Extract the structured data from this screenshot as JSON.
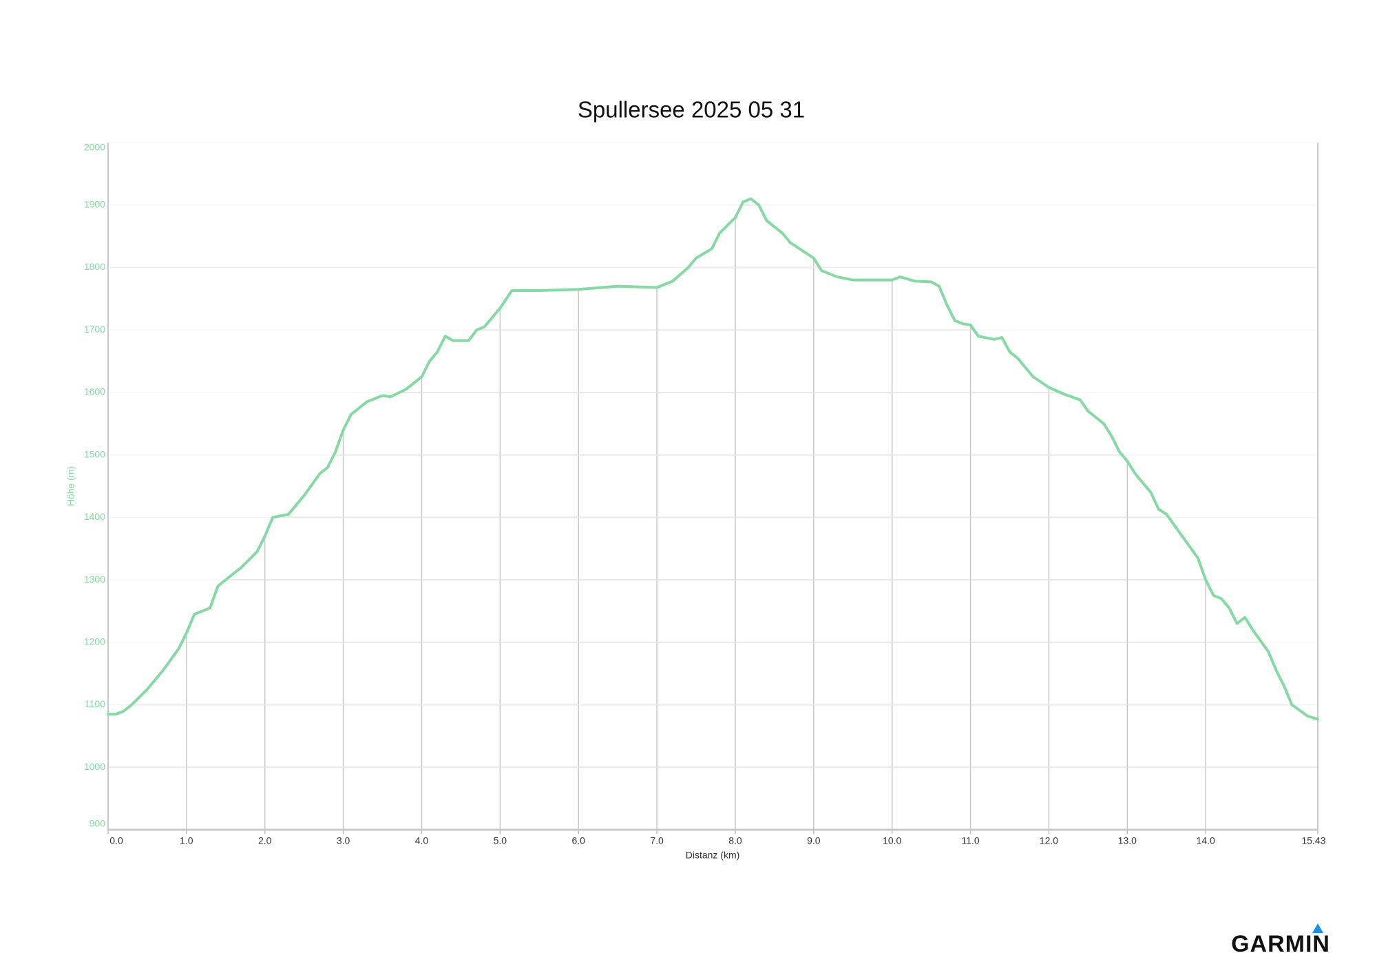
{
  "chart_data": {
    "type": "line",
    "title": "Spullersee 2025 05 31",
    "xlabel": "Distanz (km)",
    "ylabel": "Höhe (m)",
    "logo": "GARMIN",
    "xlim": [
      0,
      15.43
    ],
    "ylim": [
      900,
      2000
    ],
    "xticks": [
      {
        "value": 0,
        "label": "0.0"
      },
      {
        "value": 1,
        "label": "1.0"
      },
      {
        "value": 2,
        "label": "2.0"
      },
      {
        "value": 3,
        "label": "3.0"
      },
      {
        "value": 4,
        "label": "4.0"
      },
      {
        "value": 5,
        "label": "5.0"
      },
      {
        "value": 6,
        "label": "6.0"
      },
      {
        "value": 7,
        "label": "7.0"
      },
      {
        "value": 8,
        "label": "8.0"
      },
      {
        "value": 9,
        "label": "9.0"
      },
      {
        "value": 10,
        "label": "10.0"
      },
      {
        "value": 11,
        "label": "11.0"
      },
      {
        "value": 12,
        "label": "12.0"
      },
      {
        "value": 13,
        "label": "13.0"
      },
      {
        "value": 14,
        "label": "14.0"
      },
      15.43
    ],
    "yticks": [
      900,
      1000,
      1100,
      1200,
      1300,
      1400,
      1500,
      1600,
      1700,
      1800,
      1900,
      2000
    ],
    "grid": true,
    "series": [
      {
        "color": "#86d9a5",
        "x": [
          0,
          0.1,
          0.2,
          0.3,
          0.5,
          0.7,
          0.9,
          1.0,
          1.1,
          1.2,
          1.3,
          1.4,
          1.5,
          1.7,
          1.9,
          2.0,
          2.1,
          2.3,
          2.5,
          2.7,
          2.8,
          2.9,
          3.0,
          3.1,
          3.3,
          3.5,
          3.6,
          3.8,
          4.0,
          4.1,
          4.2,
          4.3,
          4.4,
          4.6,
          4.7,
          4.8,
          5.0,
          5.15,
          5.5,
          6.0,
          6.5,
          7.0,
          7.2,
          7.4,
          7.5,
          7.7,
          7.8,
          8.0,
          8.1,
          8.2,
          8.3,
          8.4,
          8.6,
          8.7,
          9.0,
          9.1,
          9.3,
          9.5,
          9.7,
          10.0,
          10.1,
          10.3,
          10.5,
          10.6,
          10.7,
          10.8,
          10.9,
          11.0,
          11.1,
          11.3,
          11.4,
          11.5,
          11.6,
          11.8,
          12.0,
          12.2,
          12.4,
          12.5,
          12.7,
          12.8,
          12.9,
          13.0,
          13.1,
          13.3,
          13.4,
          13.5,
          13.7,
          13.9,
          14.0,
          14.1,
          14.2,
          14.3,
          14.4,
          14.5,
          14.6,
          14.8,
          14.9,
          15.0,
          15.1,
          15.3,
          15.43
        ],
        "values": [
          1085,
          1085,
          1090,
          1100,
          1125,
          1155,
          1190,
          1215,
          1245,
          1250,
          1255,
          1290,
          1300,
          1320,
          1345,
          1370,
          1400,
          1405,
          1435,
          1470,
          1480,
          1505,
          1540,
          1565,
          1585,
          1595,
          1593,
          1605,
          1625,
          1650,
          1665,
          1690,
          1683,
          1683,
          1700,
          1705,
          1735,
          1763,
          1763,
          1765,
          1770,
          1768,
          1778,
          1800,
          1815,
          1830,
          1855,
          1880,
          1905,
          1910,
          1900,
          1875,
          1855,
          1840,
          1815,
          1795,
          1785,
          1780,
          1780,
          1780,
          1785,
          1778,
          1777,
          1770,
          1740,
          1715,
          1710,
          1708,
          1690,
          1685,
          1688,
          1665,
          1655,
          1625,
          1608,
          1597,
          1588,
          1570,
          1550,
          1530,
          1505,
          1490,
          1470,
          1440,
          1413,
          1405,
          1370,
          1335,
          1300,
          1275,
          1270,
          1255,
          1230,
          1240,
          1220,
          1185,
          1155,
          1130,
          1100,
          1082,
          1077
        ]
      }
    ]
  }
}
